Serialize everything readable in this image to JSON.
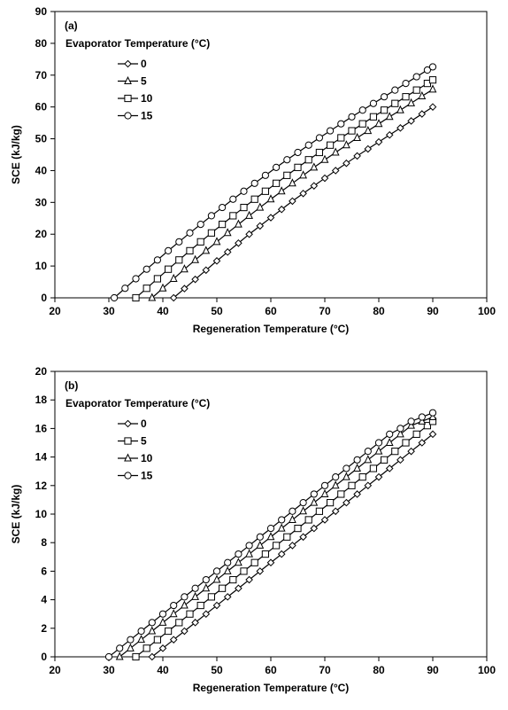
{
  "chart_data": [
    {
      "type": "line",
      "panel_label": "(a)",
      "xlabel": "Regeneration Temperature (°C)",
      "ylabel": "SCE (kJ/kg)",
      "xlim": [
        20,
        100
      ],
      "ylim": [
        0,
        90
      ],
      "xticks": [
        20,
        30,
        40,
        50,
        60,
        70,
        80,
        90,
        100
      ],
      "yticks": [
        0,
        10,
        20,
        30,
        40,
        50,
        60,
        70,
        80,
        90
      ],
      "grid": false,
      "legend_title": "Evaporator Temperature (°C)",
      "legend_position": "top-left",
      "series": [
        {
          "name": "0",
          "marker": "diamond",
          "x": [
            42,
            44,
            46,
            48,
            50,
            52,
            54,
            56,
            58,
            60,
            62,
            64,
            66,
            68,
            70,
            72,
            74,
            76,
            78,
            80,
            82,
            84,
            86,
            88,
            90
          ],
          "y": [
            0,
            2.9,
            5.8,
            8.7,
            11.6,
            14.4,
            17.2,
            20.0,
            22.6,
            25.2,
            27.8,
            30.4,
            32.8,
            35.2,
            37.6,
            40.0,
            42.3,
            44.6,
            46.8,
            49.0,
            51.2,
            53.4,
            55.6,
            57.8,
            60.0
          ]
        },
        {
          "name": "5",
          "marker": "triangle",
          "x": [
            38,
            40,
            42,
            44,
            46,
            48,
            50,
            52,
            54,
            56,
            58,
            60,
            62,
            64,
            66,
            68,
            70,
            72,
            74,
            76,
            78,
            80,
            82,
            84,
            86,
            88,
            90
          ],
          "y": [
            0,
            3.0,
            6.0,
            9.0,
            11.9,
            14.8,
            17.6,
            20.4,
            23.1,
            25.8,
            28.4,
            31.0,
            33.5,
            36.0,
            38.5,
            41.0,
            43.4,
            45.7,
            48.0,
            50.3,
            52.5,
            54.7,
            56.9,
            59.0,
            61.2,
            63.4,
            65.5
          ]
        },
        {
          "name": "10",
          "marker": "square",
          "x": [
            35,
            37,
            39,
            41,
            43,
            45,
            47,
            49,
            51,
            53,
            55,
            57,
            59,
            61,
            63,
            65,
            67,
            69,
            71,
            73,
            75,
            77,
            79,
            81,
            83,
            85,
            87,
            89,
            90
          ],
          "y": [
            0,
            3.0,
            6.0,
            9.0,
            11.9,
            14.8,
            17.6,
            20.4,
            23.1,
            25.8,
            28.4,
            31.0,
            33.5,
            36.0,
            38.5,
            41.0,
            43.4,
            45.7,
            48.0,
            50.3,
            52.5,
            54.7,
            56.9,
            59.0,
            61.1,
            63.2,
            65.3,
            67.4,
            68.5
          ]
        },
        {
          "name": "15",
          "marker": "circle",
          "x": [
            31,
            33,
            35,
            37,
            39,
            41,
            43,
            45,
            47,
            49,
            51,
            53,
            55,
            57,
            59,
            61,
            63,
            65,
            67,
            69,
            71,
            73,
            75,
            77,
            79,
            81,
            83,
            85,
            87,
            89,
            90
          ],
          "y": [
            0,
            3.0,
            6.0,
            9.0,
            11.9,
            14.8,
            17.6,
            20.4,
            23.1,
            25.8,
            28.4,
            31.0,
            33.5,
            36.0,
            38.5,
            41.0,
            43.4,
            45.7,
            48.0,
            50.3,
            52.5,
            54.7,
            56.9,
            59.0,
            61.1,
            63.2,
            65.3,
            67.4,
            69.5,
            71.6,
            72.6
          ]
        }
      ]
    },
    {
      "type": "line",
      "panel_label": "(b)",
      "xlabel": "Regeneration Temperature (°C)",
      "ylabel": "SCE (kJ/kg)",
      "xlim": [
        20,
        100
      ],
      "ylim": [
        0,
        20
      ],
      "xticks": [
        20,
        30,
        40,
        50,
        60,
        70,
        80,
        90,
        100
      ],
      "yticks": [
        0,
        2,
        4,
        6,
        8,
        10,
        12,
        14,
        16,
        18,
        20
      ],
      "grid": false,
      "legend_title": "Evaporator Temperature (°C)",
      "legend_position": "top-left",
      "series": [
        {
          "name": "0",
          "marker": "diamond",
          "x": [
            38,
            40,
            42,
            44,
            46,
            48,
            50,
            52,
            54,
            56,
            58,
            60,
            62,
            64,
            66,
            68,
            70,
            72,
            74,
            76,
            78,
            80,
            82,
            84,
            86,
            88,
            90
          ],
          "y": [
            0,
            0.6,
            1.2,
            1.8,
            2.4,
            3.0,
            3.6,
            4.2,
            4.8,
            5.4,
            6.0,
            6.6,
            7.2,
            7.8,
            8.4,
            9.0,
            9.6,
            10.2,
            10.8,
            11.4,
            12.0,
            12.6,
            13.2,
            13.8,
            14.4,
            15.0,
            15.6
          ]
        },
        {
          "name": "5",
          "marker": "square",
          "x": [
            35,
            37,
            39,
            41,
            43,
            45,
            47,
            49,
            51,
            53,
            55,
            57,
            59,
            61,
            63,
            65,
            67,
            69,
            71,
            73,
            75,
            77,
            79,
            81,
            83,
            85,
            87,
            89,
            90
          ],
          "y": [
            0,
            0.6,
            1.2,
            1.8,
            2.4,
            3.0,
            3.6,
            4.2,
            4.8,
            5.4,
            6.0,
            6.6,
            7.2,
            7.8,
            8.4,
            9.0,
            9.6,
            10.2,
            10.8,
            11.4,
            12.0,
            12.6,
            13.2,
            13.8,
            14.4,
            15.0,
            15.6,
            16.2,
            16.5
          ]
        },
        {
          "name": "10",
          "marker": "triangle",
          "x": [
            32,
            34,
            36,
            38,
            40,
            42,
            44,
            46,
            48,
            50,
            52,
            54,
            56,
            58,
            60,
            62,
            64,
            66,
            68,
            70,
            72,
            74,
            76,
            78,
            80,
            82,
            84,
            86,
            88,
            90
          ],
          "y": [
            0,
            0.6,
            1.2,
            1.8,
            2.4,
            3.0,
            3.6,
            4.2,
            4.8,
            5.4,
            6.0,
            6.6,
            7.2,
            7.8,
            8.4,
            9.0,
            9.6,
            10.2,
            10.8,
            11.4,
            12.0,
            12.6,
            13.2,
            13.8,
            14.4,
            15.0,
            15.6,
            16.2,
            16.5,
            16.8
          ]
        },
        {
          "name": "15",
          "marker": "circle",
          "x": [
            30,
            32,
            34,
            36,
            38,
            40,
            42,
            44,
            46,
            48,
            50,
            52,
            54,
            56,
            58,
            60,
            62,
            64,
            66,
            68,
            70,
            72,
            74,
            76,
            78,
            80,
            82,
            84,
            86,
            88,
            90
          ],
          "y": [
            0,
            0.6,
            1.2,
            1.8,
            2.4,
            3.0,
            3.6,
            4.2,
            4.8,
            5.4,
            6.0,
            6.6,
            7.2,
            7.8,
            8.4,
            9.0,
            9.6,
            10.2,
            10.8,
            11.4,
            12.0,
            12.6,
            13.2,
            13.8,
            14.4,
            15.0,
            15.6,
            16.0,
            16.5,
            16.8,
            17.1
          ]
        }
      ]
    }
  ]
}
